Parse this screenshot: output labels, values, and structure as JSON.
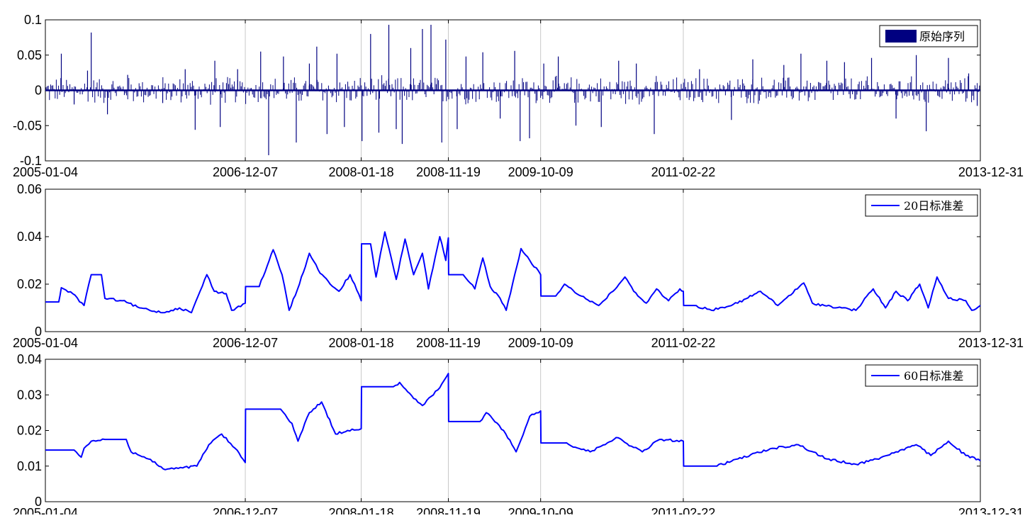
{
  "colors": {
    "raw": "#000080",
    "std": "#0000ff",
    "axis": "#000000",
    "grid": "#c8c8c8"
  },
  "x_ticks": [
    "2005-01-04",
    "2006-12-07",
    "2008-01-18",
    "2008-11-19",
    "2009-10-09",
    "2011-02-22",
    "2013-12-31"
  ],
  "chart_data": [
    {
      "type": "bar",
      "legend": "原始序列",
      "legend_position": "top-right",
      "grid": "x",
      "xlim": [
        "2005-01-04",
        "2013-12-31"
      ],
      "ylim": [
        -0.1,
        0.1
      ],
      "y_ticks": [
        -0.1,
        -0.05,
        0,
        0.05,
        0.1
      ],
      "y_tick_labels": [
        "-0.1",
        "-0.05",
        "0",
        "0.05",
        "0.1"
      ],
      "series": [
        {
          "name": "原始序列",
          "values": [
            [
              "2005-03-01",
              0.052
            ],
            [
              "2005-04-15",
              -0.02
            ],
            [
              "2005-06-01",
              0.028
            ],
            [
              "2005-06-14",
              0.082
            ],
            [
              "2005-08-10",
              -0.034
            ],
            [
              "2005-10-20",
              0.022
            ],
            [
              "2006-02-20",
              -0.018
            ],
            [
              "2006-05-10",
              0.03
            ],
            [
              "2006-06-14",
              -0.056
            ],
            [
              "2006-08-22",
              0.042
            ],
            [
              "2006-09-10",
              -0.052
            ],
            [
              "2006-11-10",
              0.03
            ],
            [
              "2007-01-30",
              0.055
            ],
            [
              "2007-02-27",
              -0.092
            ],
            [
              "2007-04-20",
              0.048
            ],
            [
              "2007-06-04",
              -0.074
            ],
            [
              "2007-07-20",
              0.038
            ],
            [
              "2007-08-15",
              0.062
            ],
            [
              "2007-09-20",
              -0.062
            ],
            [
              "2007-10-25",
              0.052
            ],
            [
              "2007-11-20",
              -0.052
            ],
            [
              "2008-01-21",
              -0.072
            ],
            [
              "2008-02-20",
              0.08
            ],
            [
              "2008-03-20",
              -0.06
            ],
            [
              "2008-04-24",
              0.093
            ],
            [
              "2008-05-20",
              -0.055
            ],
            [
              "2008-06-10",
              -0.076
            ],
            [
              "2008-07-10",
              0.06
            ],
            [
              "2008-08-20",
              0.087
            ],
            [
              "2008-09-19",
              0.093
            ],
            [
              "2008-10-27",
              -0.074
            ],
            [
              "2008-11-10",
              0.072
            ],
            [
              "2008-12-20",
              -0.055
            ],
            [
              "2009-01-20",
              0.048
            ],
            [
              "2009-03-20",
              0.054
            ],
            [
              "2009-05-20",
              -0.04
            ],
            [
              "2009-07-10",
              0.056
            ],
            [
              "2009-07-29",
              -0.072
            ],
            [
              "2009-08-31",
              -0.068
            ],
            [
              "2009-10-20",
              0.038
            ],
            [
              "2009-12-10",
              0.048
            ],
            [
              "2010-02-10",
              -0.05
            ],
            [
              "2010-05-10",
              -0.052
            ],
            [
              "2010-07-10",
              0.042
            ],
            [
              "2010-09-10",
              0.038
            ],
            [
              "2010-11-12",
              -0.062
            ],
            [
              "2011-04-20",
              0.03
            ],
            [
              "2011-08-10",
              -0.042
            ],
            [
              "2011-10-24",
              0.044
            ],
            [
              "2012-02-10",
              0.036
            ],
            [
              "2012-04-10",
              0.052
            ],
            [
              "2012-07-10",
              0.042
            ],
            [
              "2012-09-10",
              0.04
            ],
            [
              "2012-12-14",
              0.046
            ],
            [
              "2013-03-10",
              -0.04
            ],
            [
              "2013-05-20",
              0.05
            ],
            [
              "2013-06-24",
              -0.058
            ],
            [
              "2013-09-10",
              0.046
            ],
            [
              "2013-11-20",
              0.024
            ],
            [
              "2013-12-20",
              -0.022
            ]
          ]
        }
      ]
    },
    {
      "type": "line",
      "legend": "20日标准差",
      "legend_position": "top-right",
      "grid": "x",
      "xlim": [
        "2005-01-04",
        "2013-12-31"
      ],
      "ylim": [
        0,
        0.06
      ],
      "y_ticks": [
        0,
        0.02,
        0.04,
        0.06
      ],
      "y_tick_labels": [
        "0",
        "0.02",
        "0.04",
        "0.06"
      ],
      "series": [
        {
          "name": "20日标准差",
          "values": [
            [
              "2005-01-04",
              0.0125
            ],
            [
              "2005-02-20",
              0.0125
            ],
            [
              "2005-03-01",
              0.0185
            ],
            [
              "2005-04-10",
              0.016
            ],
            [
              "2005-05-20",
              0.011
            ],
            [
              "2005-06-14",
              0.024
            ],
            [
              "2005-07-20",
              0.024
            ],
            [
              "2005-08-01",
              0.014
            ],
            [
              "2005-10-01",
              0.013
            ],
            [
              "2005-12-01",
              0.01
            ],
            [
              "2006-02-20",
              0.008
            ],
            [
              "2006-04-20",
              0.01
            ],
            [
              "2006-06-01",
              0.008
            ],
            [
              "2006-07-01",
              0.017
            ],
            [
              "2006-07-25",
              0.024
            ],
            [
              "2006-08-20",
              0.017
            ],
            [
              "2006-10-01",
              0.016
            ],
            [
              "2006-10-20",
              0.009
            ],
            [
              "2006-12-07",
              0.012
            ],
            [
              "2006-12-08",
              0.019
            ],
            [
              "2007-01-25",
              0.019
            ],
            [
              "2007-03-01",
              0.03
            ],
            [
              "2007-03-15",
              0.0345
            ],
            [
              "2007-04-15",
              0.024
            ],
            [
              "2007-05-10",
              0.009
            ],
            [
              "2007-06-15",
              0.02
            ],
            [
              "2007-07-20",
              0.033
            ],
            [
              "2007-08-20",
              0.026
            ],
            [
              "2007-10-01",
              0.02
            ],
            [
              "2007-11-01",
              0.017
            ],
            [
              "2007-12-10",
              0.024
            ],
            [
              "2008-01-18",
              0.013
            ],
            [
              "2008-01-19",
              0.037
            ],
            [
              "2008-02-20",
              0.037
            ],
            [
              "2008-03-10",
              0.023
            ],
            [
              "2008-04-10",
              0.042
            ],
            [
              "2008-05-20",
              0.022
            ],
            [
              "2008-06-20",
              0.039
            ],
            [
              "2008-07-20",
              0.024
            ],
            [
              "2008-08-20",
              0.033
            ],
            [
              "2008-09-10",
              0.018
            ],
            [
              "2008-10-20",
              0.04
            ],
            [
              "2008-11-10",
              0.03
            ],
            [
              "2008-11-19",
              0.0395
            ],
            [
              "2008-11-20",
              0.024
            ],
            [
              "2009-01-10",
              0.024
            ],
            [
              "2009-02-20",
              0.018
            ],
            [
              "2009-03-20",
              0.031
            ],
            [
              "2009-04-15",
              0.019
            ],
            [
              "2009-05-20",
              0.014
            ],
            [
              "2009-06-10",
              0.009
            ],
            [
              "2009-07-10",
              0.024
            ],
            [
              "2009-08-01",
              0.035
            ],
            [
              "2009-09-01",
              0.03
            ],
            [
              "2009-10-09",
              0.024
            ],
            [
              "2009-10-10",
              0.015
            ],
            [
              "2009-12-01",
              0.015
            ],
            [
              "2010-01-01",
              0.02
            ],
            [
              "2010-03-01",
              0.015
            ],
            [
              "2010-05-01",
              0.011
            ],
            [
              "2010-06-20",
              0.017
            ],
            [
              "2010-08-01",
              0.023
            ],
            [
              "2010-09-01",
              0.017
            ],
            [
              "2010-10-15",
              0.012
            ],
            [
              "2010-11-20",
              0.018
            ],
            [
              "2011-01-01",
              0.013
            ],
            [
              "2011-02-10",
              0.018
            ],
            [
              "2011-02-22",
              0.017
            ],
            [
              "2011-02-23",
              0.011
            ],
            [
              "2011-04-01",
              0.011
            ],
            [
              "2011-06-01",
              0.009
            ],
            [
              "2011-09-01",
              0.012
            ],
            [
              "2011-11-20",
              0.017
            ],
            [
              "2012-01-20",
              0.011
            ],
            [
              "2012-04-20",
              0.0205
            ],
            [
              "2012-05-20",
              0.012
            ],
            [
              "2012-07-01",
              0.011
            ],
            [
              "2012-09-01",
              0.01
            ],
            [
              "2012-10-20",
              0.009
            ],
            [
              "2012-12-20",
              0.018
            ],
            [
              "2013-02-01",
              0.01
            ],
            [
              "2013-03-10",
              0.017
            ],
            [
              "2013-04-20",
              0.013
            ],
            [
              "2013-06-01",
              0.02
            ],
            [
              "2013-07-01",
              0.01
            ],
            [
              "2013-08-01",
              0.023
            ],
            [
              "2013-09-10",
              0.014
            ],
            [
              "2013-11-10",
              0.013
            ],
            [
              "2013-12-01",
              0.009
            ],
            [
              "2013-12-31",
              0.011
            ]
          ]
        }
      ]
    },
    {
      "type": "line",
      "legend": "60日标准差",
      "legend_position": "top-right",
      "grid": "x",
      "xlim": [
        "2005-01-04",
        "2013-12-31"
      ],
      "ylim": [
        0,
        0.04
      ],
      "y_ticks": [
        0,
        0.01,
        0.02,
        0.03,
        0.04
      ],
      "y_tick_labels": [
        "0",
        "0.01",
        "0.02",
        "0.03",
        "0.04"
      ],
      "series": [
        {
          "name": "60日标准差",
          "values": [
            [
              "2005-01-04",
              0.0145
            ],
            [
              "2005-04-15",
              0.0145
            ],
            [
              "2005-05-10",
              0.0125
            ],
            [
              "2005-05-20",
              0.015
            ],
            [
              "2005-06-14",
              0.017
            ],
            [
              "2005-08-01",
              0.0175
            ],
            [
              "2005-10-15",
              0.0175
            ],
            [
              "2005-11-01",
              0.014
            ],
            [
              "2006-01-01",
              0.012
            ],
            [
              "2006-03-01",
              0.009
            ],
            [
              "2006-05-01",
              0.0095
            ],
            [
              "2006-06-20",
              0.01
            ],
            [
              "2006-08-01",
              0.016
            ],
            [
              "2006-09-15",
              0.019
            ],
            [
              "2006-11-01",
              0.015
            ],
            [
              "2006-12-07",
              0.011
            ],
            [
              "2006-12-08",
              0.026
            ],
            [
              "2007-04-10",
              0.026
            ],
            [
              "2007-05-20",
              0.022
            ],
            [
              "2007-06-10",
              0.017
            ],
            [
              "2007-07-20",
              0.025
            ],
            [
              "2007-09-01",
              0.028
            ],
            [
              "2007-10-20",
              0.019
            ],
            [
              "2007-12-01",
              0.02
            ],
            [
              "2008-01-18",
              0.0205
            ],
            [
              "2008-01-19",
              0.0323
            ],
            [
              "2008-05-10",
              0.0323
            ],
            [
              "2008-06-01",
              0.0335
            ],
            [
              "2008-07-20",
              0.029
            ],
            [
              "2008-08-20",
              0.027
            ],
            [
              "2008-10-20",
              0.032
            ],
            [
              "2008-11-19",
              0.036
            ],
            [
              "2008-11-20",
              0.0225
            ],
            [
              "2009-03-10",
              0.0225
            ],
            [
              "2009-04-01",
              0.025
            ],
            [
              "2009-06-01",
              0.02
            ],
            [
              "2009-07-15",
              0.014
            ],
            [
              "2009-09-01",
              0.024
            ],
            [
              "2009-10-09",
              0.0255
            ],
            [
              "2009-10-10",
              0.0165
            ],
            [
              "2010-01-01",
              0.0165
            ],
            [
              "2010-04-01",
              0.014
            ],
            [
              "2010-07-01",
              0.018
            ],
            [
              "2010-10-01",
              0.014
            ],
            [
              "2010-12-01",
              0.0175
            ],
            [
              "2011-02-22",
              0.017
            ],
            [
              "2011-02-23",
              0.01
            ],
            [
              "2011-06-20",
              0.01
            ],
            [
              "2011-09-01",
              0.012
            ],
            [
              "2012-01-01",
              0.015
            ],
            [
              "2012-04-01",
              0.016
            ],
            [
              "2012-07-10",
              0.012
            ],
            [
              "2012-10-20",
              0.0105
            ],
            [
              "2013-01-01",
              0.012
            ],
            [
              "2013-03-10",
              0.014
            ],
            [
              "2013-05-20",
              0.016
            ],
            [
              "2013-07-10",
              0.013
            ],
            [
              "2013-09-10",
              0.017
            ],
            [
              "2013-11-10",
              0.013
            ],
            [
              "2013-12-31",
              0.0115
            ]
          ]
        }
      ]
    }
  ]
}
